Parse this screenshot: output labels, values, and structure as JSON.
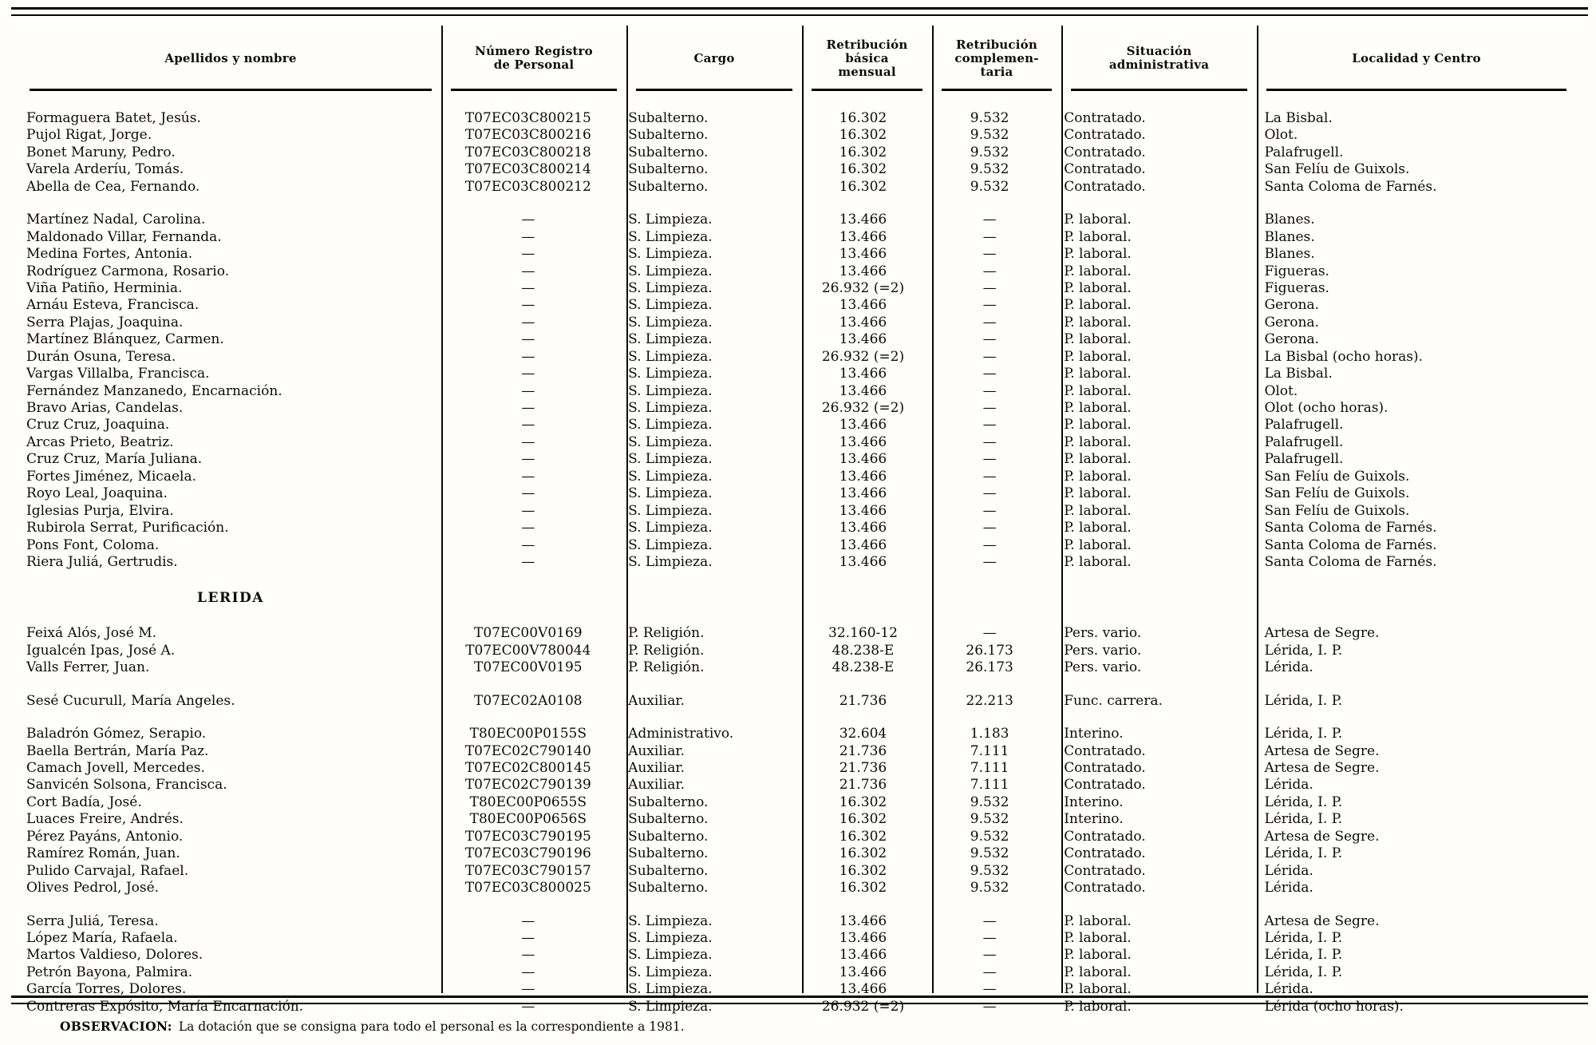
{
  "page": {
    "ink": "#0b0b0b",
    "paper": "#fffefc",
    "rule_color": "#050505"
  },
  "table": {
    "columns": [
      {
        "key": "name",
        "label": "Apellidos y nombre"
      },
      {
        "key": "registry",
        "label": "Número Registro\nde Personal"
      },
      {
        "key": "cargo",
        "label": "Cargo"
      },
      {
        "key": "basica",
        "label": "Retribución\nbásica\nmensual"
      },
      {
        "key": "complementaria",
        "label": "Retribución\ncomplemen-\ntaria"
      },
      {
        "key": "situacion",
        "label": "Situación\nadministrativa"
      },
      {
        "key": "localidad",
        "label": "Localidad y Centro"
      }
    ],
    "groups": [
      {
        "rows": [
          [
            "Formaguera Batet, Jesús.",
            "T07EC03C800215",
            "Subalterno.",
            "16.302",
            "9.532",
            "Contratado.",
            "La Bisbal."
          ],
          [
            "Pujol Rigat, Jorge.",
            "T07EC03C800216",
            "Subalterno.",
            "16.302",
            "9.532",
            "Contratado.",
            "Olot."
          ],
          [
            "Bonet Maruny, Pedro.",
            "T07EC03C800218",
            "Subalterno.",
            "16.302",
            "9.532",
            "Contratado.",
            "Palafrugell."
          ],
          [
            "Varela Arderíu, Tomás.",
            "T07EC03C800214",
            "Subalterno.",
            "16.302",
            "9.532",
            "Contratado.",
            "San Felíu de Guixols."
          ],
          [
            "Abella de Cea, Fernando.",
            "T07EC03C800212",
            "Subalterno.",
            "16.302",
            "9.532",
            "Contratado.",
            "Santa Coloma de Farnés."
          ]
        ]
      },
      {
        "rows": [
          [
            "Martínez Nadal, Carolina.",
            "—",
            "S. Limpieza.",
            "13.466",
            "—",
            "P. laboral.",
            "Blanes."
          ],
          [
            "Maldonado Villar, Fernanda.",
            "—",
            "S. Limpieza.",
            "13.466",
            "—",
            "P. laboral.",
            "Blanes."
          ],
          [
            "Medina Fortes, Antonia.",
            "—",
            "S. Limpieza.",
            "13.466",
            "—",
            "P. laboral.",
            "Blanes."
          ],
          [
            "Rodríguez Carmona, Rosario.",
            "—",
            "S. Limpieza.",
            "13.466",
            "—",
            "P. laboral.",
            "Figueras."
          ],
          [
            "Viña Patiño, Herminia.",
            "—",
            "S. Limpieza.",
            "26.932 (=2)",
            "—",
            "P. laboral.",
            "Figueras."
          ],
          [
            "Arnáu Esteva, Francisca.",
            "—",
            "S. Limpieza.",
            "13.466",
            "—",
            "P. laboral.",
            "Gerona."
          ],
          [
            "Serra Plajas, Joaquina.",
            "—",
            "S. Limpieza.",
            "13.466",
            "—",
            "P. laboral.",
            "Gerona."
          ],
          [
            "Martínez Blánquez, Carmen.",
            "—",
            "S. Limpieza.",
            "13.466",
            "—",
            "P. laboral.",
            "Gerona."
          ],
          [
            "Durán Osuna, Teresa.",
            "—",
            "S. Limpieza.",
            "26.932 (=2)",
            "—",
            "P. laboral.",
            "La Bisbal (ocho horas)."
          ],
          [
            "Vargas Villalba, Francisca.",
            "—",
            "S. Limpieza.",
            "13.466",
            "—",
            "P. laboral.",
            "La Bisbal."
          ],
          [
            "Fernández Manzanedo, Encarnación.",
            "—",
            "S. Limpieza.",
            "13.466",
            "—",
            "P. laboral.",
            "Olot."
          ],
          [
            "Bravo Arias, Candelas.",
            "—",
            "S. Limpieza.",
            "26.932 (=2)",
            "—",
            "P. laboral.",
            "Olot (ocho horas)."
          ],
          [
            "Cruz Cruz, Joaquina.",
            "—",
            "S. Limpieza.",
            "13.466",
            "—",
            "P. laboral.",
            "Palafrugell."
          ],
          [
            "Arcas Prieto, Beatriz.",
            "—",
            "S. Limpieza.",
            "13.466",
            "—",
            "P. laboral.",
            "Palafrugell."
          ],
          [
            "Cruz Cruz, María Juliana.",
            "—",
            "S. Limpieza.",
            "13.466",
            "—",
            "P. laboral.",
            "Palafrugell."
          ],
          [
            "Fortes Jiménez, Micaela.",
            "—",
            "S. Limpieza.",
            "13.466",
            "—",
            "P. laboral.",
            "San Felíu de Guixols."
          ],
          [
            "Royo Leal, Joaquina.",
            "—",
            "S. Limpieza.",
            "13.466",
            "—",
            "P. laboral.",
            "San Felíu de Guixols."
          ],
          [
            "Iglesias Purja, Elvira.",
            "—",
            "S. Limpieza.",
            "13.466",
            "—",
            "P. laboral.",
            "San Felíu de Guixols."
          ],
          [
            "Rubirola Serrat, Purificación.",
            "—",
            "S. Limpieza.",
            "13.466",
            "—",
            "P. laboral.",
            "Santa Coloma de Farnés."
          ],
          [
            "Pons Font, Coloma.",
            "—",
            "S. Limpieza.",
            "13.466",
            "—",
            "P. laboral.",
            "Santa Coloma de Farnés."
          ],
          [
            "Riera Juliá, Gertrudis.",
            "—",
            "S. Limpieza.",
            "13.466",
            "—",
            "P. laboral.",
            "Santa Coloma de Farnés."
          ]
        ]
      },
      {
        "section": "LERIDA"
      },
      {
        "rows": [
          [
            "Feixá Alós, José M.",
            "T07EC00V0169",
            "P. Religión.",
            "32.160-12",
            "—",
            "Pers. vario.",
            "Artesa de Segre."
          ],
          [
            "Igualcén Ipas, José A.",
            "T07EC00V780044",
            "P. Religión.",
            "48.238-E",
            "26.173",
            "Pers. vario.",
            "Lérida, I. P."
          ],
          [
            "Valls Ferrer, Juan.",
            "T07EC00V0195",
            "P. Religión.",
            "48.238-E",
            "26.173",
            "Pers. vario.",
            "Lérida."
          ]
        ]
      },
      {
        "rows": [
          [
            "Sesé Cucurull, María Angeles.",
            "T07EC02A0108",
            "Auxiliar.",
            "21.736",
            "22.213",
            "Func. carrera.",
            "Lérida, I. P."
          ]
        ]
      },
      {
        "rows": [
          [
            "Baladrón Gómez, Serapio.",
            "T80EC00P0155S",
            "Administrativo.",
            "32.604",
            "1.183",
            "Interino.",
            "Lérida, I. P."
          ],
          [
            "Baella Bertrán, María Paz.",
            "T07EC02C790140",
            "Auxiliar.",
            "21.736",
            "7.111",
            "Contratado.",
            "Artesa de Segre."
          ],
          [
            "Camach Jovell, Mercedes.",
            "T07EC02C800145",
            "Auxiliar.",
            "21.736",
            "7.111",
            "Contratado.",
            "Artesa de Segre."
          ],
          [
            "Sanvicén Solsona, Francisca.",
            "T07EC02C790139",
            "Auxiliar.",
            "21.736",
            "7.111",
            "Contratado.",
            "Lérida."
          ],
          [
            "Cort Badía, José.",
            "T80EC00P0655S",
            "Subalterno.",
            "16.302",
            "9.532",
            "Interino.",
            "Lérida, I. P."
          ],
          [
            "Luaces Freire, Andrés.",
            "T80EC00P0656S",
            "Subalterno.",
            "16.302",
            "9.532",
            "Interino.",
            "Lérida, I. P."
          ],
          [
            "Pérez Payáns, Antonio.",
            "T07EC03C790195",
            "Subalterno.",
            "16.302",
            "9.532",
            "Contratado.",
            "Artesa de Segre."
          ],
          [
            "Ramírez Román, Juan.",
            "T07EC03C790196",
            "Subalterno.",
            "16.302",
            "9.532",
            "Contratado.",
            "Lérida, I. P."
          ],
          [
            "Pulido Carvajal, Rafael.",
            "T07EC03C790157",
            "Subalterno.",
            "16.302",
            "9.532",
            "Contratado.",
            "Lérida."
          ],
          [
            "Olives Pedrol, José.",
            "T07EC03C800025",
            "Subalterno.",
            "16.302",
            "9.532",
            "Contratado.",
            "Lérida."
          ]
        ]
      },
      {
        "rows": [
          [
            "Serra Juliá, Teresa.",
            "—",
            "S. Limpieza.",
            "13.466",
            "—",
            "P. laboral.",
            "Artesa de Segre."
          ],
          [
            "López María, Rafaela.",
            "—",
            "S. Limpieza.",
            "13.466",
            "—",
            "P. laboral.",
            "Lérida, I. P."
          ],
          [
            "Martos Valdieso, Dolores.",
            "—",
            "S. Limpieza.",
            "13.466",
            "—",
            "P. laboral.",
            "Lérida, I. P."
          ],
          [
            "Petrón Bayona, Palmira.",
            "—",
            "S. Limpieza.",
            "13.466",
            "—",
            "P. laboral.",
            "Lérida, I. P."
          ],
          [
            "García Torres, Dolores.",
            "—",
            "S. Limpieza.",
            "13.466",
            "—",
            "P. laboral.",
            "Lérida."
          ],
          [
            "Contreras Expósito, María Encarnación.",
            "—",
            "S. Limpieza.",
            "26.932 (=2)",
            "—",
            "P. laboral.",
            "Lérida (ocho horas)."
          ]
        ]
      }
    ]
  },
  "footer": {
    "observation_label": "OBSERVACION:",
    "observation_text": "La dotación que se consigna para todo el personal es la correspondiente a 1981."
  }
}
